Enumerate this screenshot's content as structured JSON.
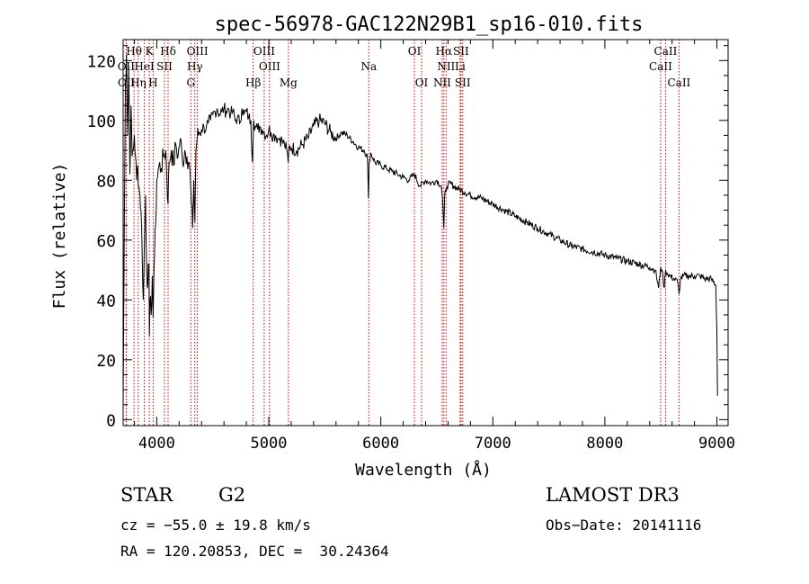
{
  "chart_data": {
    "type": "line",
    "title": "spec-56978-GAC122N29B1_sp16-010.fits",
    "xlabel": "Wavelength (Å)",
    "ylabel": "Flux (relative)",
    "xlim": [
      3700,
      9100
    ],
    "ylim": [
      -2,
      127
    ],
    "x_ticks": [
      4000,
      5000,
      6000,
      7000,
      8000,
      9000
    ],
    "x_tick_labels": [
      "4000",
      "5000",
      "6000",
      "7000",
      "8000",
      "9000"
    ],
    "y_ticks": [
      0,
      20,
      40,
      60,
      80,
      100,
      120
    ],
    "y_tick_labels": [
      "0",
      "20",
      "40",
      "60",
      "80",
      "100",
      "120"
    ],
    "grid": false,
    "series": [
      {
        "name": "spectrum",
        "x": [
          3700,
          3710,
          3720,
          3730,
          3740,
          3750,
          3760,
          3770,
          3780,
          3790,
          3800,
          3810,
          3820,
          3830,
          3840,
          3850,
          3860,
          3870,
          3880,
          3890,
          3900,
          3910,
          3920,
          3930,
          3934,
          3940,
          3950,
          3960,
          3968,
          3975,
          3990,
          4000,
          4020,
          4040,
          4060,
          4080,
          4101,
          4110,
          4130,
          4150,
          4170,
          4190,
          4210,
          4230,
          4250,
          4270,
          4290,
          4310,
          4320,
          4330,
          4340,
          4350,
          4360,
          4380,
          4400,
          4420,
          4440,
          4460,
          4480,
          4500,
          4520,
          4540,
          4560,
          4580,
          4600,
          4620,
          4640,
          4660,
          4680,
          4700,
          4720,
          4740,
          4760,
          4780,
          4800,
          4820,
          4840,
          4855,
          4861,
          4866,
          4880,
          4900,
          4920,
          4940,
          4960,
          4980,
          5000,
          5020,
          5040,
          5060,
          5080,
          5100,
          5120,
          5140,
          5160,
          5173,
          5180,
          5200,
          5250,
          5300,
          5350,
          5400,
          5450,
          5500,
          5550,
          5600,
          5650,
          5700,
          5750,
          5800,
          5850,
          5880,
          5890,
          5896,
          5910,
          5950,
          6000,
          6050,
          6100,
          6150,
          6200,
          6250,
          6300,
          6350,
          6400,
          6450,
          6500,
          6540,
          6556,
          6563,
          6570,
          6590,
          6620,
          6650,
          6700,
          6750,
          6800,
          6900,
          7000,
          7100,
          7200,
          7300,
          7400,
          7500,
          7600,
          7700,
          7800,
          7900,
          8000,
          8100,
          8200,
          8300,
          8400,
          8450,
          8480,
          8498,
          8510,
          8530,
          8542,
          8555,
          8580,
          8620,
          8650,
          8662,
          8675,
          8700,
          8750,
          8800,
          8850,
          8900,
          8950,
          8990,
          9000,
          9005
        ],
        "y": [
          5,
          60,
          112,
          122,
          95,
          118,
          82,
          105,
          88,
          90,
          95,
          88,
          80,
          85,
          78,
          75,
          70,
          55,
          40,
          60,
          75,
          50,
          45,
          52,
          28,
          40,
          35,
          48,
          34,
          50,
          65,
          80,
          85,
          84,
          88,
          90,
          72,
          86,
          90,
          85,
          92,
          88,
          94,
          86,
          90,
          88,
          86,
          72,
          64,
          80,
          66,
          90,
          94,
          96,
          97,
          98,
          97,
          99,
          100,
          102,
          103,
          104,
          102,
          103,
          104,
          103,
          104,
          102,
          103,
          100,
          101,
          99,
          104,
          102,
          103,
          101,
          100,
          86,
          95,
          100,
          98,
          97,
          98,
          97,
          96,
          95,
          97,
          96,
          95,
          95,
          94,
          94,
          93,
          92,
          90,
          86,
          91,
          91,
          90,
          92,
          94,
          98,
          100,
          99,
          96,
          94,
          96,
          95,
          93,
          91,
          90,
          88,
          74,
          86,
          89,
          86,
          85,
          84,
          83,
          82,
          81,
          80,
          82,
          78,
          80,
          79,
          80,
          78,
          70,
          64,
          75,
          78,
          79,
          78,
          77,
          76,
          75,
          74,
          72,
          70,
          68,
          66,
          64,
          62,
          60,
          58,
          57,
          56,
          55,
          54,
          53,
          52,
          51,
          50,
          44,
          51,
          50,
          44,
          50,
          49,
          48,
          47,
          46,
          42,
          47,
          48,
          48,
          48,
          48,
          47,
          47,
          45,
          30,
          8
        ]
      }
    ],
    "lines_top_row": [
      {
        "label": "Hθ",
        "x": 3797
      },
      {
        "label": "K",
        "x": 3934
      },
      {
        "label": "Hδ",
        "x": 4101
      },
      {
        "label": "OIII",
        "x": 4363
      },
      {
        "label": "OIII",
        "x": 4959
      },
      {
        "label": "OI",
        "x": 6300
      },
      {
        "label": "Hα",
        "x": 6563
      },
      {
        "label": "SII",
        "x": 6716
      },
      {
        "label": "CaII",
        "x": 8542
      }
    ],
    "lines_mid_row": [
      {
        "label": "OII",
        "x": 3727
      },
      {
        "label": "HeI",
        "x": 3889
      },
      {
        "label": "SII",
        "x": 4069
      },
      {
        "label": "Hγ",
        "x": 4340
      },
      {
        "label": "OIII",
        "x": 5007
      },
      {
        "label": "Na",
        "x": 5893
      },
      {
        "label": "NII",
        "x": 6583
      },
      {
        "label": "Li",
        "x": 6708
      },
      {
        "label": "CaII",
        "x": 8498
      }
    ],
    "lines_low_row": [
      {
        "label": "OII",
        "x": 3729
      },
      {
        "label": "Hη",
        "x": 3835
      },
      {
        "label": "H",
        "x": 3968
      },
      {
        "label": "G",
        "x": 4304
      },
      {
        "label": "Hβ",
        "x": 4861
      },
      {
        "label": "Mg",
        "x": 5175
      },
      {
        "label": "OI",
        "x": 6364
      },
      {
        "label": "NII",
        "x": 6548
      },
      {
        "label": "SII",
        "x": 6731
      },
      {
        "label": "CaII",
        "x": 8662
      }
    ],
    "line_markers": [
      3727,
      3729,
      3797,
      3835,
      3889,
      3934,
      3968,
      4069,
      4101,
      4304,
      4340,
      4363,
      4861,
      4959,
      5007,
      5175,
      5893,
      6300,
      6364,
      6548,
      6563,
      6583,
      6708,
      6716,
      6731,
      8498,
      8542,
      8662
    ]
  },
  "info": {
    "object_class": "STAR",
    "subclass": "G2",
    "survey": "LAMOST DR3",
    "redshift": "cz = −55.0 ± 19.8 km/s",
    "obs_date": "Obs−Date: 20141116",
    "coords": "RA = 120.20853, DEC =  30.24364"
  },
  "colors": {
    "axis": "#000000",
    "spectrum": "#000000",
    "marker": "#cc0000"
  }
}
